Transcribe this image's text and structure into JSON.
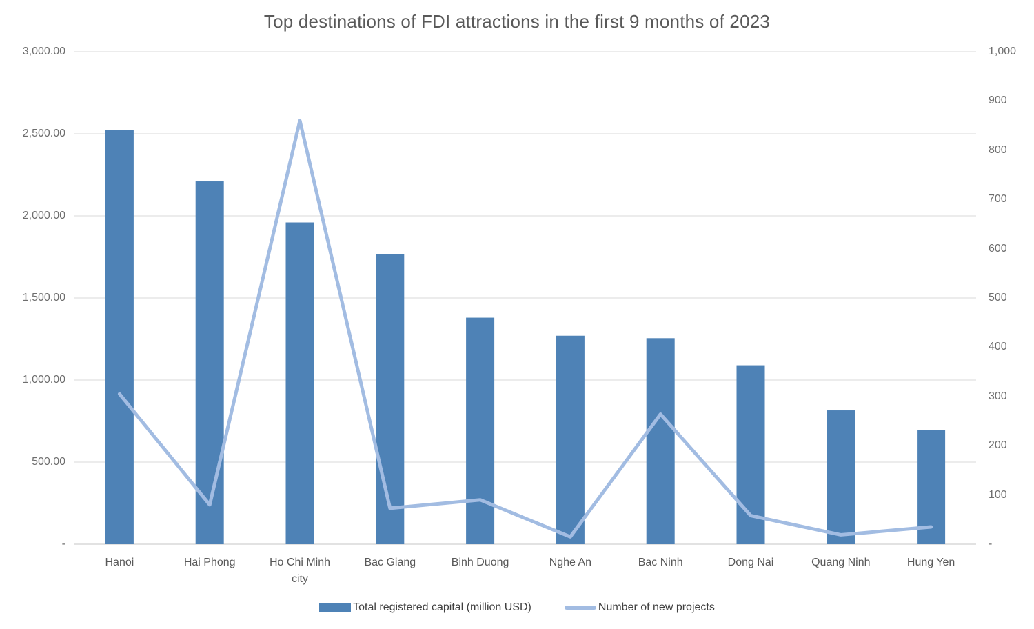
{
  "title": "Top destinations of FDI attractions in the first 9 months of 2023",
  "colors": {
    "bar": "#4e82b6",
    "line": "#a2bce2",
    "grid": "#d9d9d9",
    "baseline": "#c6c6c6",
    "axis_text": "#6e6e6e",
    "title_text": "#595959"
  },
  "left_axis": {
    "ticks": [
      "3,000.00",
      "2,500.00",
      "2,000.00",
      "1,500.00",
      "1,000.00",
      "500.00",
      "-"
    ],
    "min": 0,
    "max": 3000,
    "step": 500
  },
  "right_axis": {
    "ticks": [
      "1,000",
      "900",
      "800",
      "700",
      "600",
      "500",
      "400",
      "300",
      "200",
      "100",
      "-"
    ],
    "min": 0,
    "max": 1000,
    "step": 100
  },
  "legend": {
    "bar_label": "Total registered capital (million USD)",
    "line_label": "Number of new projects"
  },
  "chart_data": {
    "type": "bar",
    "subtype": "combo-bar-line",
    "title": "Top destinations of FDI attractions in the first 9 months of 2023",
    "categories": [
      "Hanoi",
      "Hai Phong",
      "Ho Chi Minh city",
      "Bac Giang",
      "Binh Duong",
      "Nghe An",
      "Bac Ninh",
      "Dong Nai",
      "Quang Ninh",
      "Hung Yen"
    ],
    "series": [
      {
        "name": "Total registered capital (million USD)",
        "type": "bar",
        "axis": "left",
        "values": [
          2525,
          2210,
          1960,
          1765,
          1380,
          1270,
          1255,
          1090,
          815,
          695
        ]
      },
      {
        "name": "Number of new projects",
        "type": "line",
        "axis": "right",
        "values": [
          305,
          80,
          860,
          73,
          90,
          15,
          264,
          58,
          19,
          35
        ]
      }
    ],
    "xlabel": "",
    "ylabel_left": "Total registered capital (million USD)",
    "ylabel_right": "Number of new projects",
    "left_ylim": [
      0,
      3000
    ],
    "right_ylim": [
      0,
      1000
    ],
    "grid": "horizontal",
    "legend_position": "bottom"
  }
}
